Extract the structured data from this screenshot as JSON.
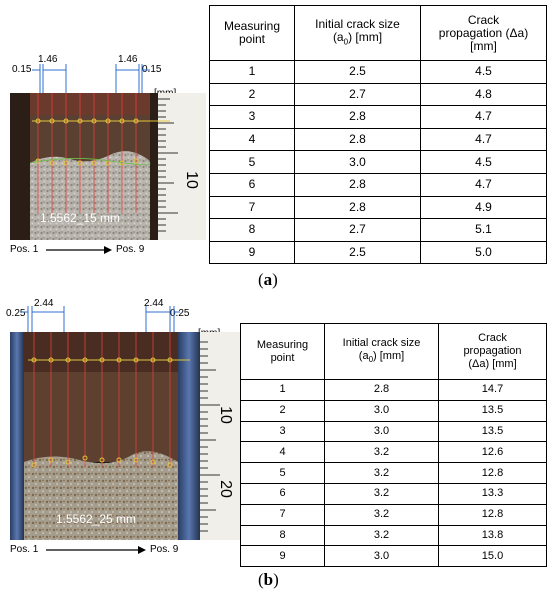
{
  "figure_a": {
    "dimensions": {
      "left_small": "0.15",
      "left_big": "1.46",
      "right_big": "1.46",
      "right_small": "0.15"
    },
    "unit_label": "[mm]",
    "specimen_label": "1.5562_15 mm",
    "ruler_numbers": [
      "10"
    ],
    "position_start": "Pos. 1",
    "position_end": "Pos. 9",
    "caption_open": "(",
    "caption_letter": "a",
    "caption_close": ")",
    "table": {
      "headers": {
        "col1_line1": "Measuring",
        "col1_line2": "point",
        "col2_line1": "Initial crack size",
        "col2_pre": "(a",
        "col2_sub": "0",
        "col2_post": ") [mm]",
        "col3_line1": "Crack",
        "col3_line2": "propagation (Δa)",
        "col3_line3": "[mm]"
      },
      "rows": [
        {
          "point": "1",
          "initial": "2.5",
          "propagation": "4.5"
        },
        {
          "point": "2",
          "initial": "2.7",
          "propagation": "4.8"
        },
        {
          "point": "3",
          "initial": "2.8",
          "propagation": "4.7"
        },
        {
          "point": "4",
          "initial": "2.8",
          "propagation": "4.7"
        },
        {
          "point": "5",
          "initial": "3.0",
          "propagation": "4.5"
        },
        {
          "point": "6",
          "initial": "2.8",
          "propagation": "4.7"
        },
        {
          "point": "7",
          "initial": "2.8",
          "propagation": "4.9"
        },
        {
          "point": "8",
          "initial": "2.7",
          "propagation": "5.1"
        },
        {
          "point": "9",
          "initial": "2.5",
          "propagation": "5.0"
        }
      ]
    }
  },
  "figure_b": {
    "dimensions": {
      "left_small": "0.25",
      "left_big": "2.44",
      "right_big": "2.44",
      "right_small": "0.25"
    },
    "unit_label": "[mm]",
    "specimen_label": "1.5562_25 mm",
    "ruler_numbers": [
      "10",
      "20"
    ],
    "position_start": "Pos. 1",
    "position_end": "Pos. 9",
    "caption_open": "(",
    "caption_letter": "b",
    "caption_close": ")",
    "table": {
      "headers": {
        "col1_line1": "Measuring",
        "col1_line2": "point",
        "col2_line1": "Initial crack size",
        "col2_pre": "(a",
        "col2_sub": "0",
        "col2_post": ") [mm]",
        "col3_line1": "Crack",
        "col3_line2": "propagation",
        "col3_line3": "(Δa) [mm]"
      },
      "rows": [
        {
          "point": "1",
          "initial": "2.8",
          "propagation": "14.7"
        },
        {
          "point": "2",
          "initial": "3.0",
          "propagation": "13.5"
        },
        {
          "point": "3",
          "initial": "3.0",
          "propagation": "13.5"
        },
        {
          "point": "4",
          "initial": "3.2",
          "propagation": "12.6"
        },
        {
          "point": "5",
          "initial": "3.2",
          "propagation": "12.8"
        },
        {
          "point": "6",
          "initial": "3.2",
          "propagation": "13.3"
        },
        {
          "point": "7",
          "initial": "3.2",
          "propagation": "12.8"
        },
        {
          "point": "8",
          "initial": "3.2",
          "propagation": "13.8"
        },
        {
          "point": "9",
          "initial": "3.0",
          "propagation": "15.0"
        }
      ]
    }
  }
}
